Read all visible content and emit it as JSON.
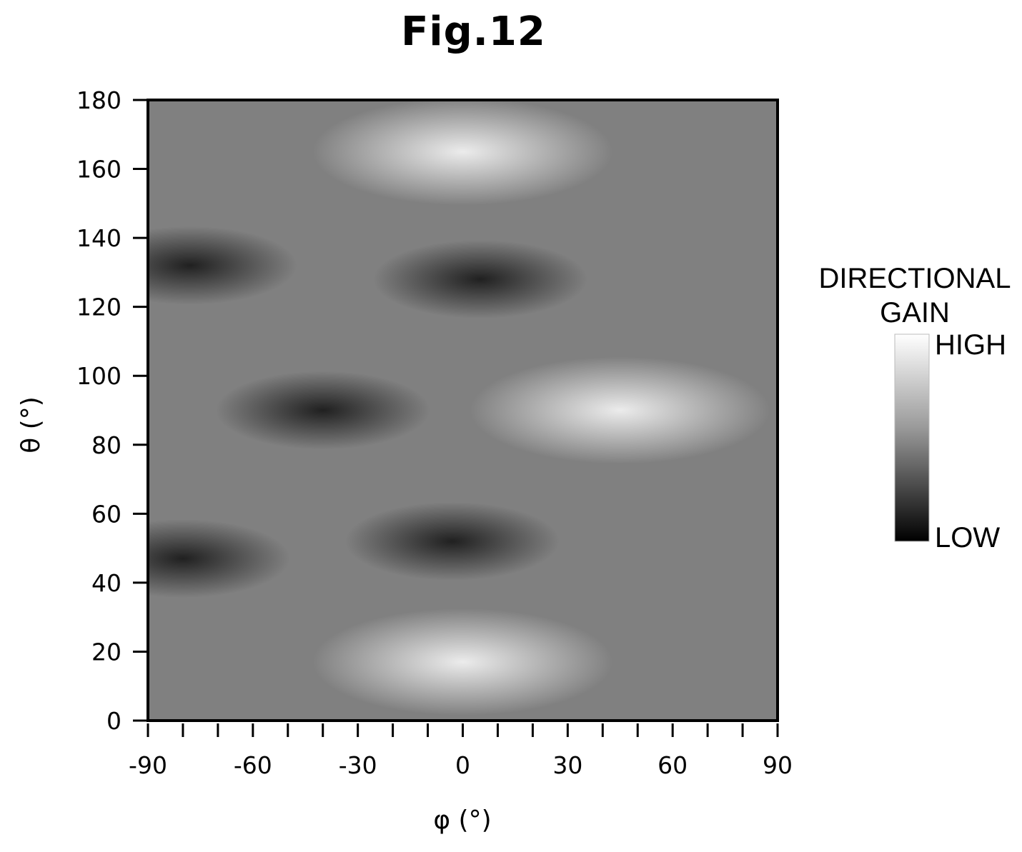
{
  "figure": {
    "title": "Fig.12"
  },
  "chart_data": {
    "type": "heatmap",
    "title": "Fig.12",
    "xlabel": "φ (°)",
    "ylabel": "θ (°)",
    "xlim": [
      -90,
      90
    ],
    "ylim": [
      0,
      180
    ],
    "x_ticks": [
      "-90",
      "-60",
      "-30",
      "0",
      "30",
      "60",
      "90"
    ],
    "x_tick_values": [
      -90,
      -60,
      -30,
      0,
      30,
      60,
      90
    ],
    "x_minor_step": 10,
    "y_ticks": [
      "0",
      "20",
      "40",
      "60",
      "80",
      "100",
      "120",
      "140",
      "160",
      "180"
    ],
    "y_tick_values": [
      0,
      20,
      40,
      60,
      80,
      100,
      120,
      140,
      160,
      180
    ],
    "colorbar": {
      "title_lines": [
        "DIRECTIONAL",
        "GAIN"
      ],
      "high_label": "HIGH",
      "low_label": "LOW",
      "high_color": "#ffffff",
      "low_color": "#000000"
    },
    "features": [
      {
        "kind": "low",
        "phi": -78,
        "theta": 132
      },
      {
        "kind": "low",
        "phi": 5,
        "theta": 128
      },
      {
        "kind": "low",
        "phi": -40,
        "theta": 90
      },
      {
        "kind": "low",
        "phi": -80,
        "theta": 47
      },
      {
        "kind": "low",
        "phi": -3,
        "theta": 52
      },
      {
        "kind": "high",
        "phi": 45,
        "theta": 90
      },
      {
        "kind": "high",
        "phi": 0,
        "theta": 165
      },
      {
        "kind": "high",
        "phi": 0,
        "theta": 17
      }
    ],
    "grid": false
  }
}
